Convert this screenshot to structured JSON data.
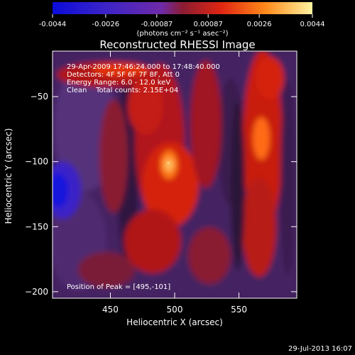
{
  "colorbar": {
    "ticks": [
      "-0.0044",
      "-0.0026",
      "-0.00087",
      "0.00087",
      "0.0026",
      "0.0044"
    ],
    "unit_label": "(photons cm⁻² s⁻¹ asec⁻²)",
    "colors": [
      "#0b0bd9",
      "#3b24c8",
      "#6e2aa8",
      "#8a1c33",
      "#e02612",
      "#ff8a1a",
      "#fff3a0"
    ]
  },
  "title": "Reconstructed RHESSI Image",
  "annotations": {
    "time_range": "29-Apr-2009 17:46:24.000 to 17:48:40.000",
    "detectors": "Detectors: 4F 5F 6F 7F 8F, Att 0",
    "energy_range": "Energy Range: 6.0 - 12.0 keV",
    "method_counts": "Clean    Total counts: 2.15E+04",
    "peak": "Position of Peak = [495,-101]"
  },
  "footer": {
    "timestamp": "29-Jul-2013 16:07"
  },
  "chart_data": {
    "type": "heatmap",
    "title": "Reconstructed RHESSI Image",
    "xlabel": "Heliocentric X (arcsec)",
    "ylabel": "Heliocentric Y (arcsec)",
    "xlim": [
      405,
      595
    ],
    "ylim": [
      -205,
      -15
    ],
    "x_ticks": [
      450,
      500,
      550
    ],
    "y_ticks": [
      -50,
      -100,
      -150,
      -200
    ],
    "colorbar_range": [
      -0.0044,
      0.0044
    ],
    "peak": [
      495,
      -101
    ]
  }
}
